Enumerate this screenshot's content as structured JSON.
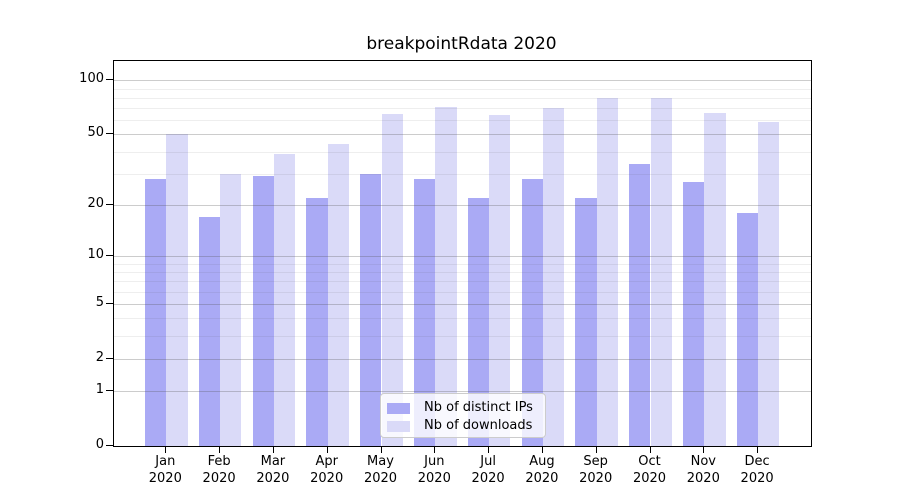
{
  "title": "breakpointRdata 2020",
  "chart_data": {
    "type": "bar",
    "title": "breakpointRdata 2020",
    "x_categories": [
      "Jan",
      "Feb",
      "Mar",
      "Apr",
      "May",
      "Jun",
      "Jul",
      "Aug",
      "Sep",
      "Oct",
      "Nov",
      "Dec"
    ],
    "x_year": "2020",
    "series": [
      {
        "name": "Nb of distinct IPs",
        "color": "#aaaaf5",
        "values": [
          28,
          17,
          29,
          22,
          30,
          28,
          22,
          28,
          22,
          34,
          27,
          18
        ]
      },
      {
        "name": "Nb of downloads",
        "color": "#dadaf8",
        "values": [
          50,
          30,
          39,
          44,
          65,
          71,
          64,
          70,
          80,
          80,
          66,
          59
        ]
      }
    ],
    "y_axis": {
      "scale": "log1p",
      "major_ticks": [
        0,
        1,
        2,
        5,
        10,
        20,
        50,
        100
      ],
      "minor_gridlines": [
        3,
        4,
        6,
        7,
        8,
        9,
        30,
        40,
        60,
        70,
        80,
        90
      ],
      "ylim": [
        0,
        128
      ]
    },
    "grid": true,
    "legend_position": "inside-bottom-center"
  },
  "colors": {
    "distinct_ips_bar": "#aaaaf5",
    "downloads_bar": "#dadaf8",
    "gridline_major": "#d2d2d2",
    "gridline_minor": "#f0f0f0",
    "frame": "#000000"
  }
}
